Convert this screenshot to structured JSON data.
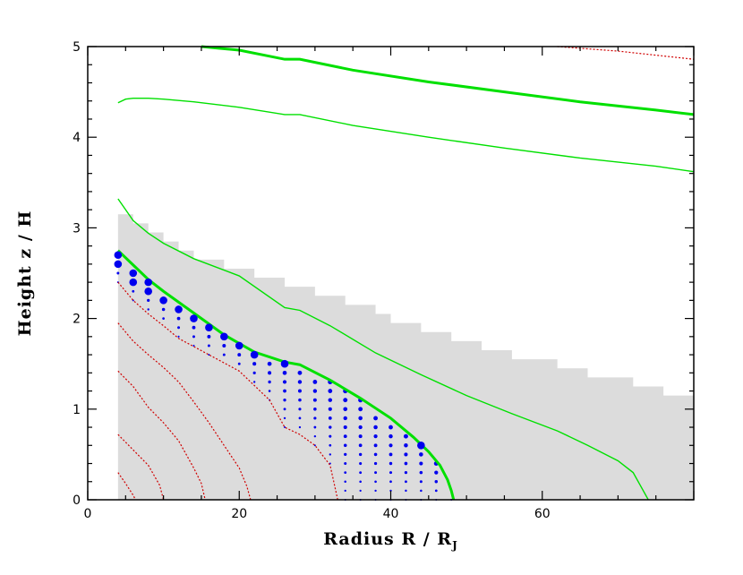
{
  "chart_data": {
    "type": "line",
    "xlabel": "Radius R / R",
    "xlabel_sub": "J",
    "ylabel": "Height z / H",
    "xlim": [
      0,
      80
    ],
    "ylim": [
      0,
      5
    ],
    "xticks": [
      "0",
      "20",
      "40",
      "60"
    ],
    "xtick_values": [
      0,
      20,
      40,
      60
    ],
    "yticks": [
      "0",
      "1",
      "2",
      "3",
      "4",
      "5"
    ],
    "ytick_values": [
      0,
      1,
      2,
      3,
      4,
      5
    ],
    "grid": false,
    "colors": {
      "green": "#00e000",
      "red": "#d00000",
      "blue": "#0000ee",
      "shade": "#dcdcdc"
    },
    "shaded_region": {
      "x": [
        4,
        4,
        6,
        8,
        10,
        12,
        14,
        16,
        18,
        20,
        22,
        24,
        26,
        28,
        30,
        32,
        34,
        36,
        38,
        40,
        42,
        44,
        46,
        48,
        50,
        52,
        54,
        56,
        58,
        60,
        62,
        64,
        66,
        68,
        70,
        72,
        74,
        76,
        78,
        80,
        80
      ],
      "top": [
        3.15,
        3.15,
        3.05,
        2.95,
        2.85,
        2.75,
        2.65,
        2.65,
        2.55,
        2.55,
        2.45,
        2.45,
        2.35,
        2.35,
        2.25,
        2.25,
        2.15,
        2.15,
        2.05,
        1.95,
        1.95,
        1.85,
        1.85,
        1.75,
        1.75,
        1.65,
        1.65,
        1.55,
        1.55,
        1.55,
        1.45,
        1.45,
        1.35,
        1.35,
        1.35,
        1.25,
        1.25,
        1.15,
        1.15,
        1.15,
        1.15
      ]
    },
    "series": [
      {
        "style": "green-thick",
        "x": [
          15,
          20,
          26,
          28,
          35,
          45,
          55,
          65,
          75,
          80
        ],
        "y": [
          5.0,
          4.96,
          4.86,
          4.86,
          4.74,
          4.61,
          4.5,
          4.39,
          4.3,
          4.25
        ]
      },
      {
        "style": "green-thin",
        "x": [
          4,
          5,
          6,
          8,
          10,
          14,
          20,
          26,
          28,
          35,
          45,
          55,
          65,
          75,
          80
        ],
        "y": [
          4.38,
          4.42,
          4.43,
          4.43,
          4.42,
          4.39,
          4.33,
          4.25,
          4.25,
          4.13,
          4.0,
          3.88,
          3.77,
          3.68,
          3.62
        ]
      },
      {
        "style": "green-thin",
        "x": [
          4,
          5,
          6,
          8,
          10,
          14,
          20,
          26,
          28,
          32,
          38,
          44,
          50,
          56,
          62,
          66,
          70,
          72,
          73,
          74
        ],
        "y": [
          3.32,
          3.2,
          3.08,
          2.94,
          2.83,
          2.66,
          2.47,
          2.12,
          2.09,
          1.92,
          1.62,
          1.38,
          1.15,
          0.95,
          0.76,
          0.6,
          0.43,
          0.3,
          0.15,
          0.0
        ]
      },
      {
        "style": "green-thick",
        "x": [
          4,
          6,
          8,
          10,
          14,
          18,
          22,
          26,
          28,
          32,
          36,
          40,
          43,
          45,
          46.5,
          47.5,
          48,
          48.3
        ],
        "y": [
          2.75,
          2.59,
          2.43,
          2.3,
          2.06,
          1.82,
          1.63,
          1.52,
          1.49,
          1.32,
          1.12,
          0.9,
          0.69,
          0.53,
          0.38,
          0.22,
          0.1,
          0.0
        ]
      },
      {
        "style": "red-dotted",
        "x": [
          4,
          6,
          8,
          10,
          12,
          16,
          20,
          24,
          26,
          28,
          30,
          32,
          33
        ],
        "y": [
          2.4,
          2.2,
          2.05,
          1.92,
          1.78,
          1.6,
          1.42,
          1.1,
          0.8,
          0.72,
          0.6,
          0.38,
          0.0
        ]
      },
      {
        "style": "red-dotted",
        "x": [
          4,
          6,
          8,
          10,
          12,
          14,
          16,
          18,
          20,
          21,
          21.5
        ],
        "y": [
          1.95,
          1.75,
          1.6,
          1.46,
          1.3,
          1.08,
          0.85,
          0.6,
          0.35,
          0.15,
          0.0
        ]
      },
      {
        "style": "red-dotted",
        "x": [
          4,
          6,
          8,
          10,
          12,
          14,
          15,
          15.5
        ],
        "y": [
          1.42,
          1.25,
          1.02,
          0.85,
          0.65,
          0.35,
          0.18,
          0.0
        ]
      },
      {
        "style": "red-dotted",
        "x": [
          4,
          6,
          8,
          9.5,
          10
        ],
        "y": [
          0.72,
          0.55,
          0.38,
          0.16,
          0.0
        ]
      },
      {
        "style": "red-dotted",
        "x": [
          4,
          5,
          6,
          6.3
        ],
        "y": [
          0.3,
          0.18,
          0.05,
          0.0
        ]
      },
      {
        "style": "red-dotted",
        "x": [
          62,
          70,
          80
        ],
        "y": [
          5.0,
          4.95,
          4.86
        ]
      }
    ],
    "large_points": {
      "x": [
        4,
        4,
        6,
        6,
        8,
        8,
        10,
        12,
        14,
        16,
        18,
        20,
        22,
        26,
        44
      ],
      "y": [
        2.7,
        2.6,
        2.5,
        2.4,
        2.4,
        2.3,
        2.2,
        2.1,
        2.0,
        1.9,
        1.8,
        1.7,
        1.6,
        1.5,
        0.6
      ]
    },
    "dot_grid": {
      "x_start": 4,
      "x_end": 48,
      "x_step": 2,
      "y_step": 0.1,
      "upper_series_index": 3,
      "lower_series_index": 4
    }
  }
}
